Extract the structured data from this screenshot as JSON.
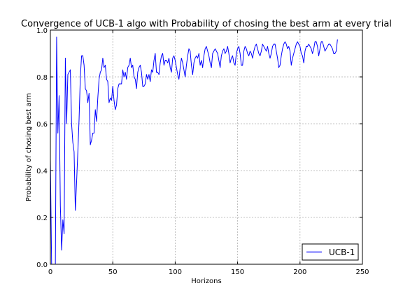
{
  "chart_data": {
    "type": "line",
    "title": "Convergence of UCB-1 algo with Probability of chosing the best arm at every trial",
    "xlabel": "Horizons",
    "ylabel": "Probability of chosing best arm",
    "xlim": [
      0,
      250
    ],
    "ylim": [
      0.0,
      1.0
    ],
    "xticks": [
      0,
      50,
      100,
      150,
      200,
      250
    ],
    "yticks": [
      0.0,
      0.2,
      0.4,
      0.6,
      0.8,
      1.0
    ],
    "xtick_labels": [
      "0",
      "50",
      "100",
      "150",
      "200",
      "250"
    ],
    "ytick_labels": [
      "0.0",
      "0.2",
      "0.4",
      "0.6",
      "0.8",
      "1.0"
    ],
    "grid": true,
    "legend_position": "bottom-right",
    "series": [
      {
        "name": "UCB-1",
        "color": "#0000ff",
        "points": [
          [
            0,
            0.45
          ],
          [
            1,
            0.0
          ],
          [
            2,
            0.0
          ],
          [
            3,
            0.0
          ],
          [
            4,
            0.0
          ],
          [
            5,
            0.97
          ],
          [
            6,
            0.56
          ],
          [
            7,
            0.72
          ],
          [
            8,
            0.25
          ],
          [
            9,
            0.06
          ],
          [
            10,
            0.19
          ],
          [
            11,
            0.13
          ],
          [
            12,
            0.88
          ],
          [
            13,
            0.6
          ],
          [
            14,
            0.81
          ],
          [
            15,
            0.82
          ],
          [
            16,
            0.83
          ],
          [
            17,
            0.6
          ],
          [
            18,
            0.52
          ],
          [
            19,
            0.48
          ],
          [
            20,
            0.23
          ],
          [
            21,
            0.35
          ],
          [
            22,
            0.48
          ],
          [
            23,
            0.62
          ],
          [
            24,
            0.8
          ],
          [
            25,
            0.89
          ],
          [
            26,
            0.89
          ],
          [
            27,
            0.85
          ],
          [
            28,
            0.75
          ],
          [
            29,
            0.74
          ],
          [
            30,
            0.69
          ],
          [
            31,
            0.73
          ],
          [
            32,
            0.51
          ],
          [
            33,
            0.53
          ],
          [
            34,
            0.56
          ],
          [
            35,
            0.56
          ],
          [
            36,
            0.66
          ],
          [
            37,
            0.61
          ],
          [
            38,
            0.71
          ],
          [
            39,
            0.79
          ],
          [
            40,
            0.82
          ],
          [
            41,
            0.83
          ],
          [
            42,
            0.88
          ],
          [
            43,
            0.84
          ],
          [
            44,
            0.85
          ],
          [
            45,
            0.79
          ],
          [
            46,
            0.78
          ],
          [
            47,
            0.69
          ],
          [
            48,
            0.71
          ],
          [
            49,
            0.7
          ],
          [
            50,
            0.76
          ],
          [
            51,
            0.7
          ],
          [
            52,
            0.66
          ],
          [
            53,
            0.68
          ],
          [
            54,
            0.75
          ],
          [
            55,
            0.77
          ],
          [
            56,
            0.77
          ],
          [
            57,
            0.77
          ],
          [
            58,
            0.83
          ],
          [
            59,
            0.8
          ],
          [
            60,
            0.82
          ],
          [
            61,
            0.79
          ],
          [
            62,
            0.84
          ],
          [
            63,
            0.85
          ],
          [
            64,
            0.88
          ],
          [
            65,
            0.84
          ],
          [
            66,
            0.85
          ],
          [
            67,
            0.8
          ],
          [
            68,
            0.79
          ],
          [
            69,
            0.75
          ],
          [
            70,
            0.82
          ],
          [
            71,
            0.84
          ],
          [
            72,
            0.85
          ],
          [
            73,
            0.82
          ],
          [
            74,
            0.76
          ],
          [
            75,
            0.76
          ],
          [
            76,
            0.77
          ],
          [
            77,
            0.81
          ],
          [
            78,
            0.79
          ],
          [
            79,
            0.81
          ],
          [
            80,
            0.78
          ],
          [
            81,
            0.83
          ],
          [
            82,
            0.82
          ],
          [
            83,
            0.87
          ],
          [
            84,
            0.9
          ],
          [
            85,
            0.82
          ],
          [
            86,
            0.82
          ],
          [
            87,
            0.81
          ],
          [
            88,
            0.86
          ],
          [
            89,
            0.89
          ],
          [
            90,
            0.9
          ],
          [
            91,
            0.85
          ],
          [
            92,
            0.87
          ],
          [
            93,
            0.87
          ],
          [
            94,
            0.86
          ],
          [
            95,
            0.88
          ],
          [
            96,
            0.84
          ],
          [
            97,
            0.82
          ],
          [
            98,
            0.88
          ],
          [
            99,
            0.89
          ],
          [
            100,
            0.87
          ],
          [
            101,
            0.84
          ],
          [
            102,
            0.81
          ],
          [
            103,
            0.79
          ],
          [
            104,
            0.84
          ],
          [
            105,
            0.88
          ],
          [
            106,
            0.86
          ],
          [
            107,
            0.83
          ],
          [
            108,
            0.8
          ],
          [
            109,
            0.85
          ],
          [
            110,
            0.89
          ],
          [
            111,
            0.92
          ],
          [
            112,
            0.91
          ],
          [
            113,
            0.85
          ],
          [
            114,
            0.81
          ],
          [
            115,
            0.86
          ],
          [
            116,
            0.88
          ],
          [
            117,
            0.89
          ],
          [
            118,
            0.88
          ],
          [
            119,
            0.9
          ],
          [
            120,
            0.85
          ],
          [
            121,
            0.87
          ],
          [
            122,
            0.84
          ],
          [
            123,
            0.89
          ],
          [
            124,
            0.92
          ],
          [
            125,
            0.93
          ],
          [
            126,
            0.91
          ],
          [
            127,
            0.89
          ],
          [
            128,
            0.86
          ],
          [
            129,
            0.84
          ],
          [
            130,
            0.9
          ],
          [
            131,
            0.91
          ],
          [
            132,
            0.92
          ],
          [
            133,
            0.91
          ],
          [
            134,
            0.9
          ],
          [
            135,
            0.87
          ],
          [
            136,
            0.84
          ],
          [
            137,
            0.89
          ],
          [
            138,
            0.91
          ],
          [
            139,
            0.92
          ],
          [
            140,
            0.9
          ],
          [
            141,
            0.91
          ],
          [
            142,
            0.93
          ],
          [
            143,
            0.9
          ],
          [
            144,
            0.86
          ],
          [
            145,
            0.88
          ],
          [
            146,
            0.89
          ],
          [
            147,
            0.86
          ],
          [
            148,
            0.85
          ],
          [
            149,
            0.9
          ],
          [
            150,
            0.92
          ],
          [
            151,
            0.93
          ],
          [
            152,
            0.9
          ],
          [
            153,
            0.85
          ],
          [
            154,
            0.85
          ],
          [
            155,
            0.91
          ],
          [
            156,
            0.93
          ],
          [
            157,
            0.92
          ],
          [
            158,
            0.9
          ],
          [
            159,
            0.89
          ],
          [
            160,
            0.91
          ],
          [
            161,
            0.9
          ],
          [
            162,
            0.88
          ],
          [
            163,
            0.91
          ],
          [
            164,
            0.93
          ],
          [
            165,
            0.94
          ],
          [
            166,
            0.92
          ],
          [
            167,
            0.9
          ],
          [
            168,
            0.89
          ],
          [
            169,
            0.91
          ],
          [
            170,
            0.94
          ],
          [
            171,
            0.93
          ],
          [
            172,
            0.92
          ],
          [
            173,
            0.91
          ],
          [
            174,
            0.93
          ],
          [
            175,
            0.9
          ],
          [
            176,
            0.88
          ],
          [
            177,
            0.9
          ],
          [
            178,
            0.93
          ],
          [
            179,
            0.94
          ],
          [
            180,
            0.94
          ],
          [
            181,
            0.91
          ],
          [
            182,
            0.88
          ],
          [
            183,
            0.84
          ],
          [
            184,
            0.85
          ],
          [
            185,
            0.89
          ],
          [
            186,
            0.92
          ],
          [
            187,
            0.94
          ],
          [
            188,
            0.95
          ],
          [
            189,
            0.94
          ],
          [
            190,
            0.92
          ],
          [
            191,
            0.93
          ],
          [
            192,
            0.91
          ],
          [
            193,
            0.85
          ],
          [
            194,
            0.88
          ],
          [
            195,
            0.9
          ],
          [
            196,
            0.92
          ],
          [
            197,
            0.94
          ],
          [
            198,
            0.95
          ],
          [
            199,
            0.94
          ],
          [
            200,
            0.93
          ],
          [
            201,
            0.9
          ],
          [
            202,
            0.89
          ],
          [
            203,
            0.86
          ],
          [
            204,
            0.91
          ],
          [
            205,
            0.93
          ],
          [
            206,
            0.93
          ],
          [
            207,
            0.94
          ],
          [
            208,
            0.93
          ],
          [
            209,
            0.92
          ],
          [
            210,
            0.9
          ],
          [
            211,
            0.92
          ],
          [
            212,
            0.95
          ],
          [
            213,
            0.95
          ],
          [
            214,
            0.93
          ],
          [
            215,
            0.89
          ],
          [
            216,
            0.92
          ],
          [
            217,
            0.95
          ],
          [
            218,
            0.95
          ],
          [
            219,
            0.93
          ],
          [
            220,
            0.91
          ],
          [
            221,
            0.92
          ],
          [
            222,
            0.93
          ],
          [
            223,
            0.94
          ],
          [
            224,
            0.94
          ],
          [
            225,
            0.93
          ],
          [
            226,
            0.92
          ],
          [
            227,
            0.9
          ],
          [
            228,
            0.9
          ],
          [
            229,
            0.91
          ],
          [
            230,
            0.96
          ]
        ]
      }
    ]
  }
}
